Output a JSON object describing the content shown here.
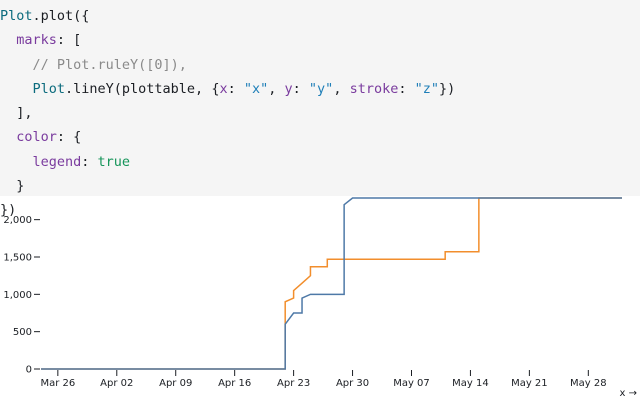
{
  "code": {
    "lines": [
      [
        "Plot",
        ".plot({"
      ],
      [
        "marks",
        ": ["
      ],
      [
        "// Plot.ruleY([0]),"
      ],
      [
        "Plot",
        ".lineY(plottable, {",
        "x",
        ": ",
        "\"x\"",
        ", ",
        "y",
        ": ",
        "\"y\"",
        ", ",
        "stroke",
        ": ",
        "\"z\"",
        "})"
      ],
      [
        "],"
      ],
      [
        "color",
        ": {"
      ],
      [
        "legend",
        ": ",
        "true"
      ],
      [
        "}"
      ],
      [
        "})"
      ]
    ]
  },
  "chart_data": {
    "type": "line",
    "x_label": "x →",
    "xlim": [
      "Mar 24",
      "Jun 1"
    ],
    "xticks": [
      "Mar 26",
      "Apr 02",
      "Apr 09",
      "Apr 16",
      "Apr 23",
      "Apr 30",
      "May 07",
      "May 14",
      "May 21",
      "May 28"
    ],
    "ylim": [
      0,
      2290
    ],
    "yticks": [
      0,
      500,
      {
        "value": 1000,
        "label": "1,000"
      },
      {
        "value": 1500,
        "label": "1,500"
      },
      {
        "value": 2000,
        "label": "2,000"
      }
    ],
    "grid": false,
    "series": [
      {
        "color": "#f28e2c",
        "x": [
          "Mar 24",
          "Apr 22",
          "Apr 22",
          "Apr 23",
          "Apr 23",
          "Apr 24",
          "Apr 25",
          "Apr 25",
          "Apr 27",
          "Apr 27",
          "May 11",
          "May 11",
          "May 15",
          "May 15",
          "Jun 1"
        ],
        "values": [
          0,
          0,
          900,
          950,
          1050,
          1150,
          1250,
          1370,
          1370,
          1470,
          1470,
          1570,
          1570,
          2290,
          2290
        ]
      },
      {
        "color": "#4e79a7",
        "x": [
          "Mar 24",
          "Apr 22",
          "Apr 22",
          "Apr 23",
          "Apr 24",
          "Apr 24",
          "Apr 25",
          "Apr 29",
          "Apr 29",
          "Apr 30",
          "Jun 1"
        ],
        "values": [
          0,
          0,
          600,
          750,
          750,
          950,
          1000,
          1000,
          2200,
          2290,
          2290
        ]
      }
    ]
  }
}
